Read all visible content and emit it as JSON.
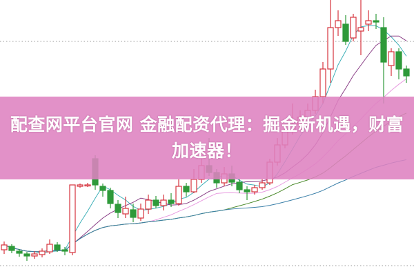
{
  "banner": {
    "title": "配查网平台官网 金融配资代理：掘金新机遇，财富加速器！"
  },
  "colors": {
    "up": "#d6323c",
    "down": "#2e9a3a",
    "banner": "#de82c0",
    "grid": "#999999"
  },
  "chart_data": {
    "type": "candlestick",
    "title": "",
    "grid": "dotted horizontal",
    "ohlc": [
      [
        3.8,
        5.0,
        3.2,
        4.5
      ],
      [
        4.3,
        4.6,
        3.3,
        3.7
      ],
      [
        3.6,
        3.9,
        2.8,
        3.3
      ],
      [
        3.2,
        3.5,
        2.2,
        2.9
      ],
      [
        2.9,
        3.6,
        2.5,
        3.2
      ],
      [
        3.1,
        4.0,
        2.7,
        3.6
      ],
      [
        3.5,
        5.3,
        3.2,
        4.6
      ],
      [
        4.5,
        4.9,
        3.5,
        3.8
      ],
      [
        3.8,
        4.2,
        3.0,
        3.6
      ],
      [
        3.4,
        13.2,
        3.0,
        13.2
      ],
      [
        13.0,
        13.4,
        12.8,
        13.2
      ],
      [
        13.2,
        13.5,
        12.9,
        13.2
      ],
      [
        17.0,
        17.5,
        12.5,
        13.2
      ],
      [
        13.0,
        13.4,
        11.5,
        12.4
      ],
      [
        12.4,
        12.8,
        9.8,
        10.5
      ],
      [
        10.4,
        11.0,
        8.4,
        9.2
      ],
      [
        9.0,
        11.5,
        8.4,
        9.8
      ],
      [
        9.6,
        10.5,
        7.8,
        8.5
      ],
      [
        8.4,
        10.5,
        8.0,
        9.7
      ],
      [
        9.7,
        11.8,
        9.0,
        11.0
      ],
      [
        11.0,
        11.6,
        9.8,
        10.2
      ],
      [
        10.2,
        11.8,
        9.5,
        11.0
      ],
      [
        11.0,
        12.0,
        10.0,
        10.5
      ],
      [
        10.5,
        14.0,
        10.2,
        13.0
      ],
      [
        13.0,
        13.5,
        11.5,
        12.2
      ],
      [
        12.2,
        15.5,
        12.0,
        14.0
      ],
      [
        14.0,
        17.0,
        13.5,
        16.0
      ],
      [
        16.0,
        20.0,
        14.5,
        15.0
      ],
      [
        15.0,
        15.5,
        12.8,
        13.5
      ],
      [
        13.5,
        15.8,
        13.0,
        14.8
      ],
      [
        14.8,
        16.0,
        13.0,
        13.6
      ],
      [
        13.6,
        14.0,
        12.0,
        12.5
      ],
      [
        12.5,
        13.0,
        11.0,
        12.2
      ],
      [
        12.2,
        13.2,
        11.8,
        12.8
      ],
      [
        12.8,
        14.0,
        12.5,
        13.5
      ],
      [
        13.5,
        17.0,
        13.2,
        16.5
      ],
      [
        16.5,
        20.0,
        16.0,
        19.0
      ],
      [
        19.0,
        22.0,
        18.5,
        21.0
      ],
      [
        21.0,
        25.0,
        20.5,
        22.0
      ],
      [
        22.0,
        24.0,
        21.0,
        23.0
      ],
      [
        23.0,
        25.0,
        22.0,
        24.0
      ],
      [
        24.0,
        27.0,
        23.5,
        26.0
      ],
      [
        26.0,
        31.0,
        25.0,
        30.0
      ],
      [
        30.0,
        40.0,
        28.0,
        36.0
      ],
      [
        36.0,
        38.5,
        34.8,
        37.0
      ],
      [
        36.5,
        37.8,
        33.5,
        34.0
      ],
      [
        34.5,
        38.0,
        34.0,
        37.5
      ],
      [
        35.5,
        40.0,
        32.0,
        36.0
      ],
      [
        36.5,
        38.5,
        35.5,
        37.0
      ],
      [
        37.0,
        38.0,
        35.8,
        36.8
      ],
      [
        36.0,
        37.5,
        25.0,
        31.0
      ],
      [
        30.5,
        33.0,
        29.0,
        32.5
      ],
      [
        32.5,
        33.0,
        28.5,
        30.0
      ],
      [
        30.0,
        30.5,
        28.0,
        29.0
      ]
    ],
    "moving_averages": [
      {
        "period": 5,
        "color": "#3fb0b8"
      },
      {
        "period": 10,
        "color": "#8a3f86"
      },
      {
        "period": 20,
        "color": "#e89be0"
      },
      {
        "period": 30,
        "color": "#4a8a2a"
      },
      {
        "period": 60,
        "color": "#3a7fa8"
      }
    ],
    "gridlines": [
      34,
      1.5
    ]
  }
}
